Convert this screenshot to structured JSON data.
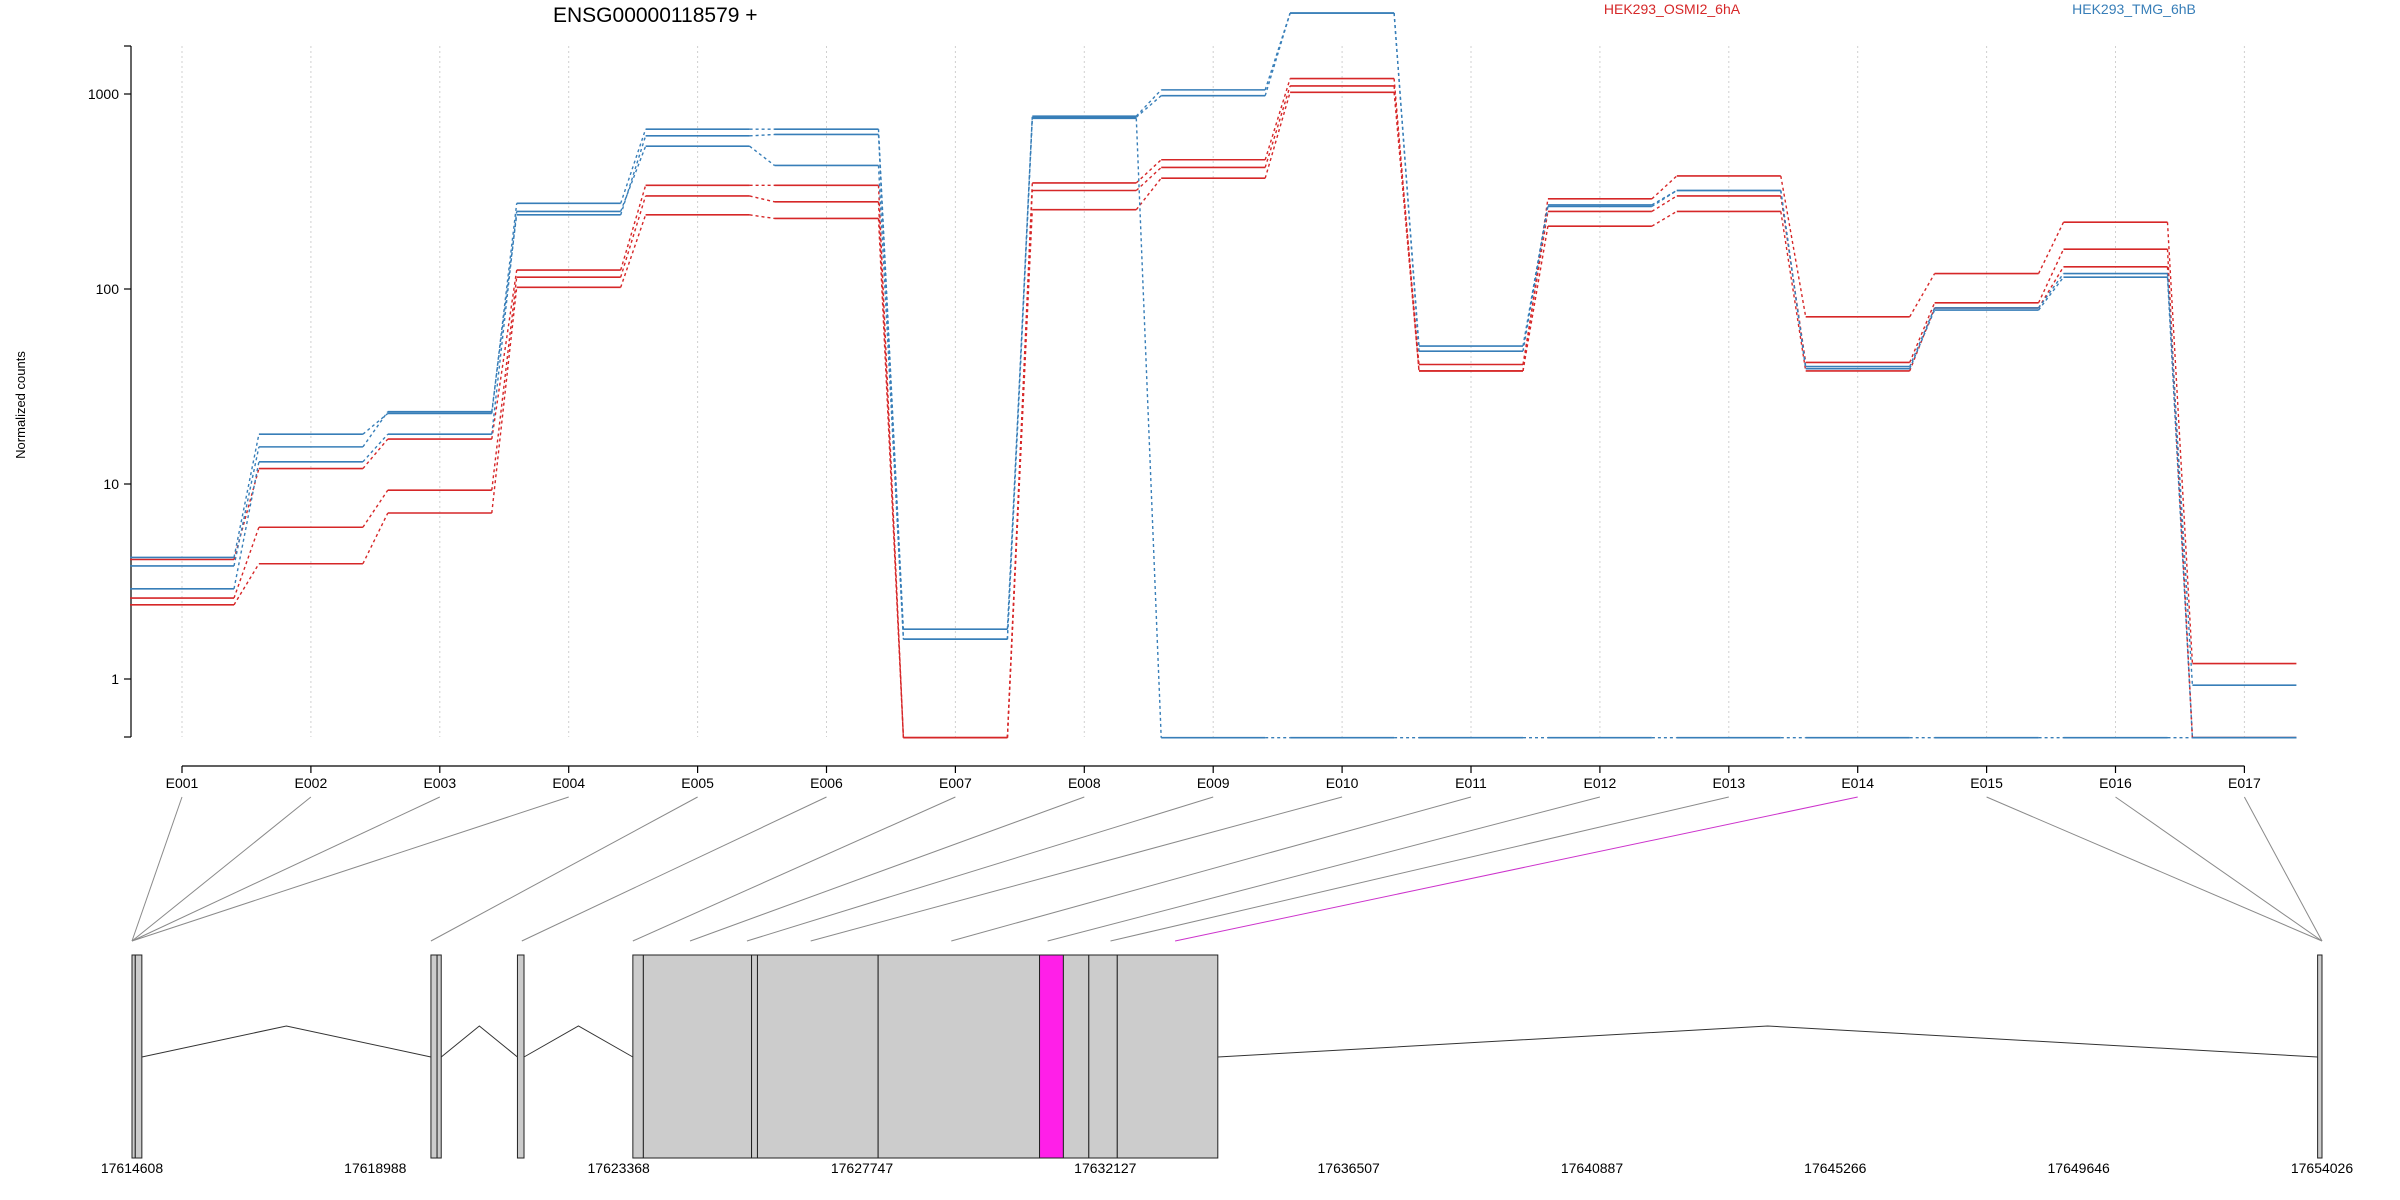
{
  "chart_data": {
    "type": "line",
    "title": "ENSG00000118579 +",
    "ylabel": "Normalized counts",
    "yscale": "log",
    "ylim": [
      0.5,
      3500
    ],
    "yticks": [
      1,
      10,
      100,
      1000
    ],
    "ytick_labels": [
      "1",
      "10",
      "100",
      "1000"
    ],
    "grid": "vertical dotted",
    "legend": [
      "HEK293_OSMI2_6hA",
      "HEK293_TMG_6hB"
    ],
    "legend_placement": "top",
    "categories": [
      "E001",
      "E002",
      "E003",
      "E004",
      "E005",
      "E006",
      "E007",
      "E008",
      "E009",
      "E010",
      "E011",
      "E012",
      "E013",
      "E014",
      "E015",
      "E016",
      "E017"
    ],
    "series": [
      {
        "name": "HEK293_OSMI2_6hA",
        "group": "HEK293_OSMI2_6hA",
        "values": [
          4.1,
          12,
          17,
          125,
          340,
          340,
          0.5,
          350,
          460,
          1200,
          38,
          290,
          380,
          72,
          120,
          220,
          1.2
        ]
      },
      {
        "name": "",
        "group": "HEK293_OSMI2_6hA",
        "values": [
          2.6,
          6,
          9.3,
          115,
          300,
          280,
          0.5,
          320,
          420,
          1100,
          41,
          250,
          300,
          42,
          85,
          160,
          0.5
        ]
      },
      {
        "name": "",
        "group": "HEK293_OSMI2_6hA",
        "values": [
          2.4,
          3.9,
          7.1,
          102,
          240,
          230,
          0.5,
          255,
          370,
          1020,
          38,
          210,
          250,
          38,
          80,
          130,
          0.5
        ]
      },
      {
        "name": "HEK293_TMG_6hB",
        "group": "HEK293_TMG_6hB",
        "values": [
          4.2,
          18,
          23,
          275,
          660,
          660,
          1.8,
          770,
          1050,
          2600,
          51,
          270,
          320,
          40,
          80,
          120,
          0.93
        ]
      },
      {
        "name": "",
        "group": "HEK293_TMG_6hB",
        "values": [
          3.8,
          15.5,
          23.5,
          240,
          610,
          620,
          1.6,
          760,
          980,
          2600,
          48,
          265,
          320,
          39,
          78,
          115,
          0.5
        ]
      },
      {
        "name": "",
        "group": "HEK293_TMG_6hB",
        "values": [
          2.9,
          13,
          18,
          250,
          540,
          430,
          1.6,
          750,
          0.5,
          0.5,
          0.5,
          0.5,
          0.5,
          0.5,
          0.5,
          0.5,
          0.5
        ]
      }
    ],
    "colors": {
      "HEK293_OSMI2_6hA": "#d62728",
      "HEK293_TMG_6hB": "#377eb8",
      "highlight": "#ff1fe8",
      "exon_fill": "#cccccc"
    },
    "gene_model": {
      "coordinates": [
        "17614608",
        "17618988",
        "17623368",
        "17627747",
        "17632127",
        "17636507",
        "17640887",
        "17645266",
        "17649646",
        "17654026"
      ],
      "highlighted_exon": "E014"
    }
  }
}
